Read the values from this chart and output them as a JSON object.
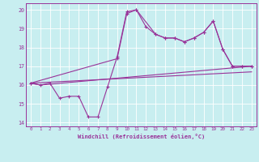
{
  "xlabel": "Windchill (Refroidissement éolien,°C)",
  "background_color": "#c8eef0",
  "line_color": "#993399",
  "grid_color": "#aaaaaa",
  "xlim": [
    -0.5,
    23.5
  ],
  "ylim": [
    13.8,
    20.35
  ],
  "xticks": [
    0,
    1,
    2,
    3,
    4,
    5,
    6,
    7,
    8,
    9,
    10,
    11,
    12,
    13,
    14,
    15,
    16,
    17,
    18,
    19,
    20,
    21,
    22,
    23
  ],
  "yticks": [
    14,
    15,
    16,
    17,
    18,
    19,
    20
  ],
  "line_main": {
    "x": [
      0,
      1,
      2,
      3,
      4,
      5,
      6,
      7,
      8,
      9,
      10,
      11,
      12,
      13,
      14,
      15,
      16,
      17,
      18,
      19,
      20,
      21,
      22,
      23
    ],
    "y": [
      16.1,
      16.0,
      16.1,
      15.3,
      15.4,
      15.4,
      14.3,
      14.3,
      15.9,
      17.5,
      19.9,
      20.0,
      19.1,
      18.7,
      18.5,
      18.5,
      18.3,
      18.5,
      18.8,
      19.4,
      17.9,
      17.0,
      17.0,
      17.0
    ]
  },
  "line_upper": {
    "x": [
      0,
      9,
      10,
      11,
      13,
      14,
      15,
      16,
      17,
      18,
      19,
      20,
      21,
      22,
      23
    ],
    "y": [
      16.1,
      17.4,
      19.8,
      20.0,
      18.7,
      18.5,
      18.5,
      18.3,
      18.5,
      18.8,
      19.4,
      17.9,
      17.0,
      17.0,
      17.0
    ]
  },
  "line_lower": {
    "x": [
      0,
      23
    ],
    "y": [
      16.1,
      16.7
    ]
  },
  "line_mid": {
    "x": [
      0,
      1,
      23
    ],
    "y": [
      16.1,
      16.0,
      17.0
    ]
  }
}
